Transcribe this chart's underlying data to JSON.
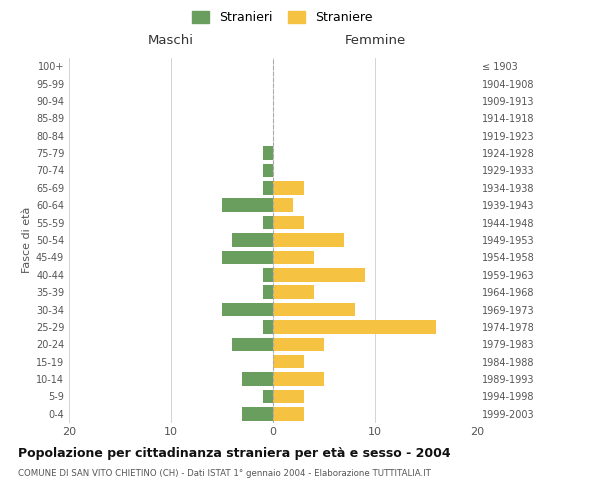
{
  "age_groups": [
    "0-4",
    "5-9",
    "10-14",
    "15-19",
    "20-24",
    "25-29",
    "30-34",
    "35-39",
    "40-44",
    "45-49",
    "50-54",
    "55-59",
    "60-64",
    "65-69",
    "70-74",
    "75-79",
    "80-84",
    "85-89",
    "90-94",
    "95-99",
    "100+"
  ],
  "birth_years": [
    "1999-2003",
    "1994-1998",
    "1989-1993",
    "1984-1988",
    "1979-1983",
    "1974-1978",
    "1969-1973",
    "1964-1968",
    "1959-1963",
    "1954-1958",
    "1949-1953",
    "1944-1948",
    "1939-1943",
    "1934-1938",
    "1929-1933",
    "1924-1928",
    "1919-1923",
    "1914-1918",
    "1909-1913",
    "1904-1908",
    "≤ 1903"
  ],
  "males": [
    3,
    1,
    3,
    0,
    4,
    1,
    5,
    1,
    1,
    5,
    4,
    1,
    5,
    1,
    1,
    1,
    0,
    0,
    0,
    0,
    0
  ],
  "females": [
    3,
    3,
    5,
    3,
    5,
    16,
    8,
    4,
    9,
    4,
    7,
    3,
    2,
    3,
    0,
    0,
    0,
    0,
    0,
    0,
    0
  ],
  "male_color": "#6a9e5f",
  "female_color": "#f5c242",
  "title": "Popolazione per cittadinanza straniera per età e sesso - 2004",
  "subtitle": "COMUNE DI SAN VITO CHIETINO (CH) - Dati ISTAT 1° gennaio 2004 - Elaborazione TUTTITALIA.IT",
  "ylabel_left": "Fasce di età",
  "label_maschi": "Maschi",
  "label_femmine": "Femmine",
  "legend_stranieri": "Stranieri",
  "legend_straniere": "Straniere",
  "xlim": 20,
  "background_color": "#ffffff",
  "grid_color": "#cccccc"
}
